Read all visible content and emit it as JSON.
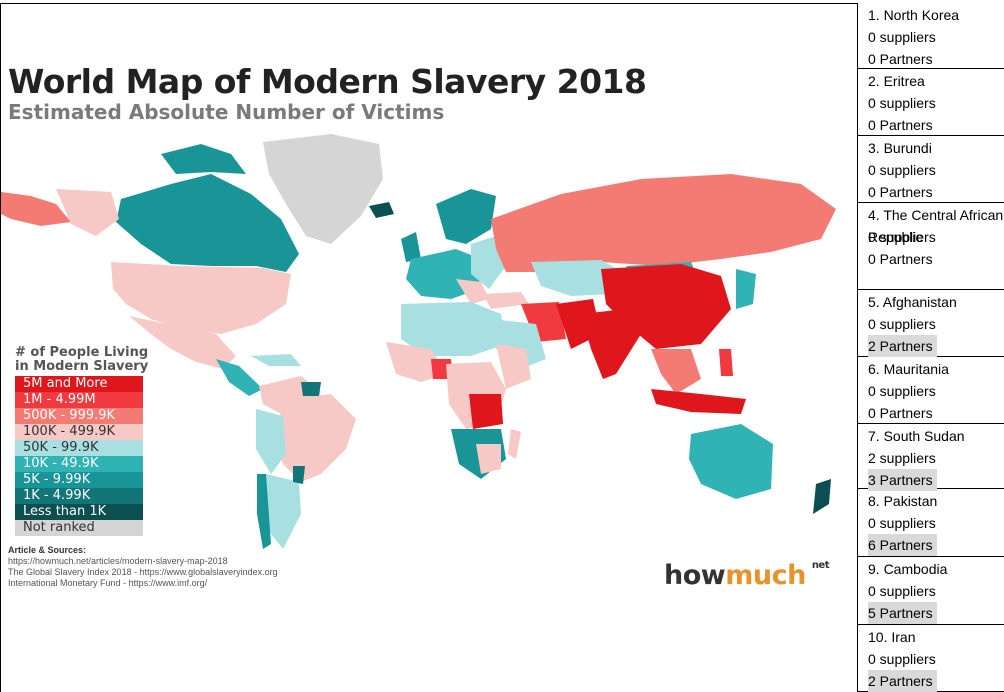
{
  "map": {
    "title": "World Map of Modern Slavery 2018",
    "subtitle": "Estimated Absolute Number of Victims",
    "legend_title": "# of People Living in Modern Slavery",
    "legend": [
      {
        "label": "5M and More",
        "color": "#e0161d",
        "dark_text": false
      },
      {
        "label": "1M - 4.99M",
        "color": "#f03a3f",
        "dark_text": false
      },
      {
        "label": "500K - 999.9K",
        "color": "#f47b74",
        "dark_text": false
      },
      {
        "label": "100K - 499.9K",
        "color": "#f7c9c6",
        "dark_text": true
      },
      {
        "label": "50K - 99.9K",
        "color": "#a8e0e2",
        "dark_text": true
      },
      {
        "label": "10K - 49.9K",
        "color": "#2fb3b5",
        "dark_text": false
      },
      {
        "label": "5K - 9.99K",
        "color": "#1a9597",
        "dark_text": false
      },
      {
        "label": "1K - 4.99K",
        "color": "#127577",
        "dark_text": false
      },
      {
        "label": "Less than 1K",
        "color": "#0b4f50",
        "dark_text": false
      },
      {
        "label": "Not ranked",
        "color": "#d5d5d5",
        "dark_text": true
      }
    ],
    "sources": {
      "heading": "Article & Sources:",
      "lines": [
        "https://howmuch.net/articles/modern-slavery-map-2018",
        "The Global Slavery Index 2018 - https://www.globalslaveryindex.org",
        "International Monetary Fund - https://www.imf.org/"
      ]
    },
    "brand": {
      "how": "how",
      "much": "much",
      "net": "net"
    }
  },
  "countries": [
    {
      "name": "1. North Korea",
      "suppliers": "0 suppliers",
      "partners": "0 Partners",
      "partners_highlight": false
    },
    {
      "name": "2. Eritrea",
      "suppliers": "0 suppliers",
      "partners": "0 Partners",
      "partners_highlight": false
    },
    {
      "name": "3. Burundi",
      "suppliers": "0 suppliers",
      "partners": "0 Partners",
      "partners_highlight": false
    },
    {
      "name": "4. The Central African Republic",
      "suppliers": "0 suppliers",
      "partners": "0 Partners",
      "partners_highlight": false
    },
    {
      "name": "5. Afghanistan",
      "suppliers": "0 suppliers",
      "partners": "2 Partners",
      "partners_highlight": true
    },
    {
      "name": "6. Mauritania",
      "suppliers": "0 suppliers",
      "partners": "0 Partners",
      "partners_highlight": false
    },
    {
      "name": "7. South Sudan",
      "suppliers": "2 suppliers",
      "partners": "3 Partners",
      "partners_highlight": true
    },
    {
      "name": "8. Pakistan",
      "suppliers": "0 suppliers",
      "partners": "6 Partners",
      "partners_highlight": true
    },
    {
      "name": "9. Cambodia",
      "suppliers": "0 suppliers",
      "partners": "5 Partners",
      "partners_highlight": true
    },
    {
      "name": "10. Iran",
      "suppliers": "0 suppliers",
      "partners": "2 Partners",
      "partners_highlight": true
    }
  ]
}
